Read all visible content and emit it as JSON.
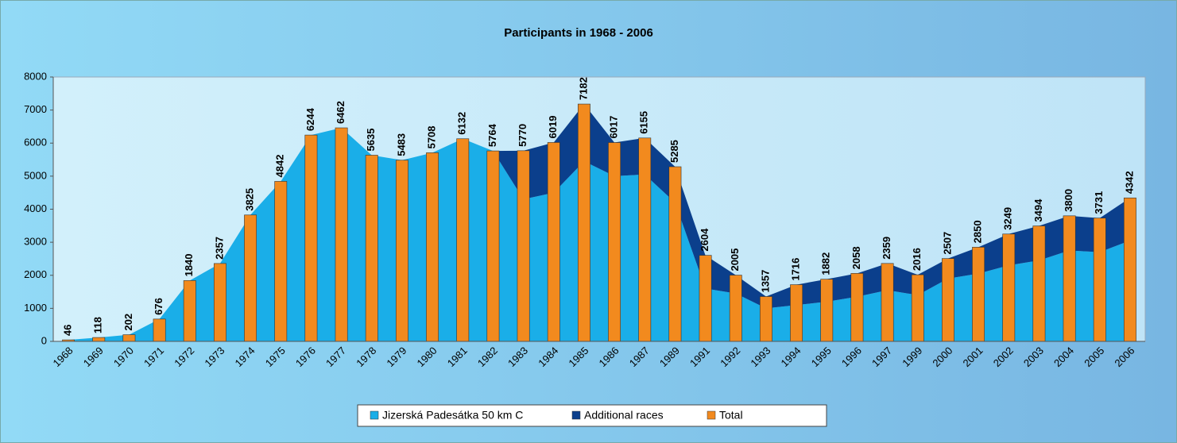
{
  "chart_data": {
    "type": "area",
    "title": "Participants in 1968 - 2006",
    "categories": [
      "1968",
      "1969",
      "1970",
      "1971",
      "1972",
      "1973",
      "1974",
      "1975",
      "1976",
      "1977",
      "1978",
      "1979",
      "1980",
      "1981",
      "1982",
      "1983",
      "1984",
      "1985",
      "1986",
      "1987",
      "1989",
      "1991",
      "1992",
      "1993",
      "1994",
      "1995",
      "1996",
      "1997",
      "1999",
      "2000",
      "2001",
      "2002",
      "2003",
      "2004",
      "2005",
      "2006"
    ],
    "series": [
      {
        "name": "Jizerská Padesátka 50 km C",
        "color": "#1aaee8",
        "values": [
          46,
          118,
          202,
          676,
          1840,
          2357,
          3825,
          4842,
          6244,
          6462,
          5635,
          5483,
          5708,
          6132,
          5764,
          4300,
          4500,
          5450,
          5000,
          5050,
          4200,
          1600,
          1450,
          1000,
          1100,
          1200,
          1350,
          1550,
          1400,
          1900,
          2050,
          2300,
          2450,
          2750,
          2700,
          3050
        ]
      },
      {
        "name": "Additional races",
        "color": "#0b3f8c",
        "values": [
          0,
          0,
          0,
          0,
          0,
          0,
          0,
          0,
          0,
          0,
          0,
          0,
          0,
          0,
          0,
          1470,
          1519,
          1732,
          1017,
          1105,
          1085,
          1004,
          555,
          357,
          616,
          682,
          708,
          809,
          616,
          607,
          800,
          949,
          1044,
          1050,
          1031,
          1292
        ]
      },
      {
        "name": "Total",
        "color": "#f28a1e",
        "type": "bar",
        "values": [
          46,
          118,
          202,
          676,
          1840,
          2357,
          3825,
          4842,
          6244,
          6462,
          5635,
          5483,
          5708,
          6132,
          5764,
          5770,
          6019,
          7182,
          6017,
          6155,
          5285,
          2604,
          2005,
          1357,
          1716,
          1882,
          2058,
          2359,
          2016,
          2507,
          2850,
          3249,
          3494,
          3800,
          3731,
          4342
        ]
      }
    ],
    "ylim": [
      0,
      8000
    ],
    "yticks": [
      0,
      1000,
      2000,
      3000,
      4000,
      5000,
      6000,
      7000,
      8000
    ],
    "grid": false,
    "legend": "bottom"
  }
}
